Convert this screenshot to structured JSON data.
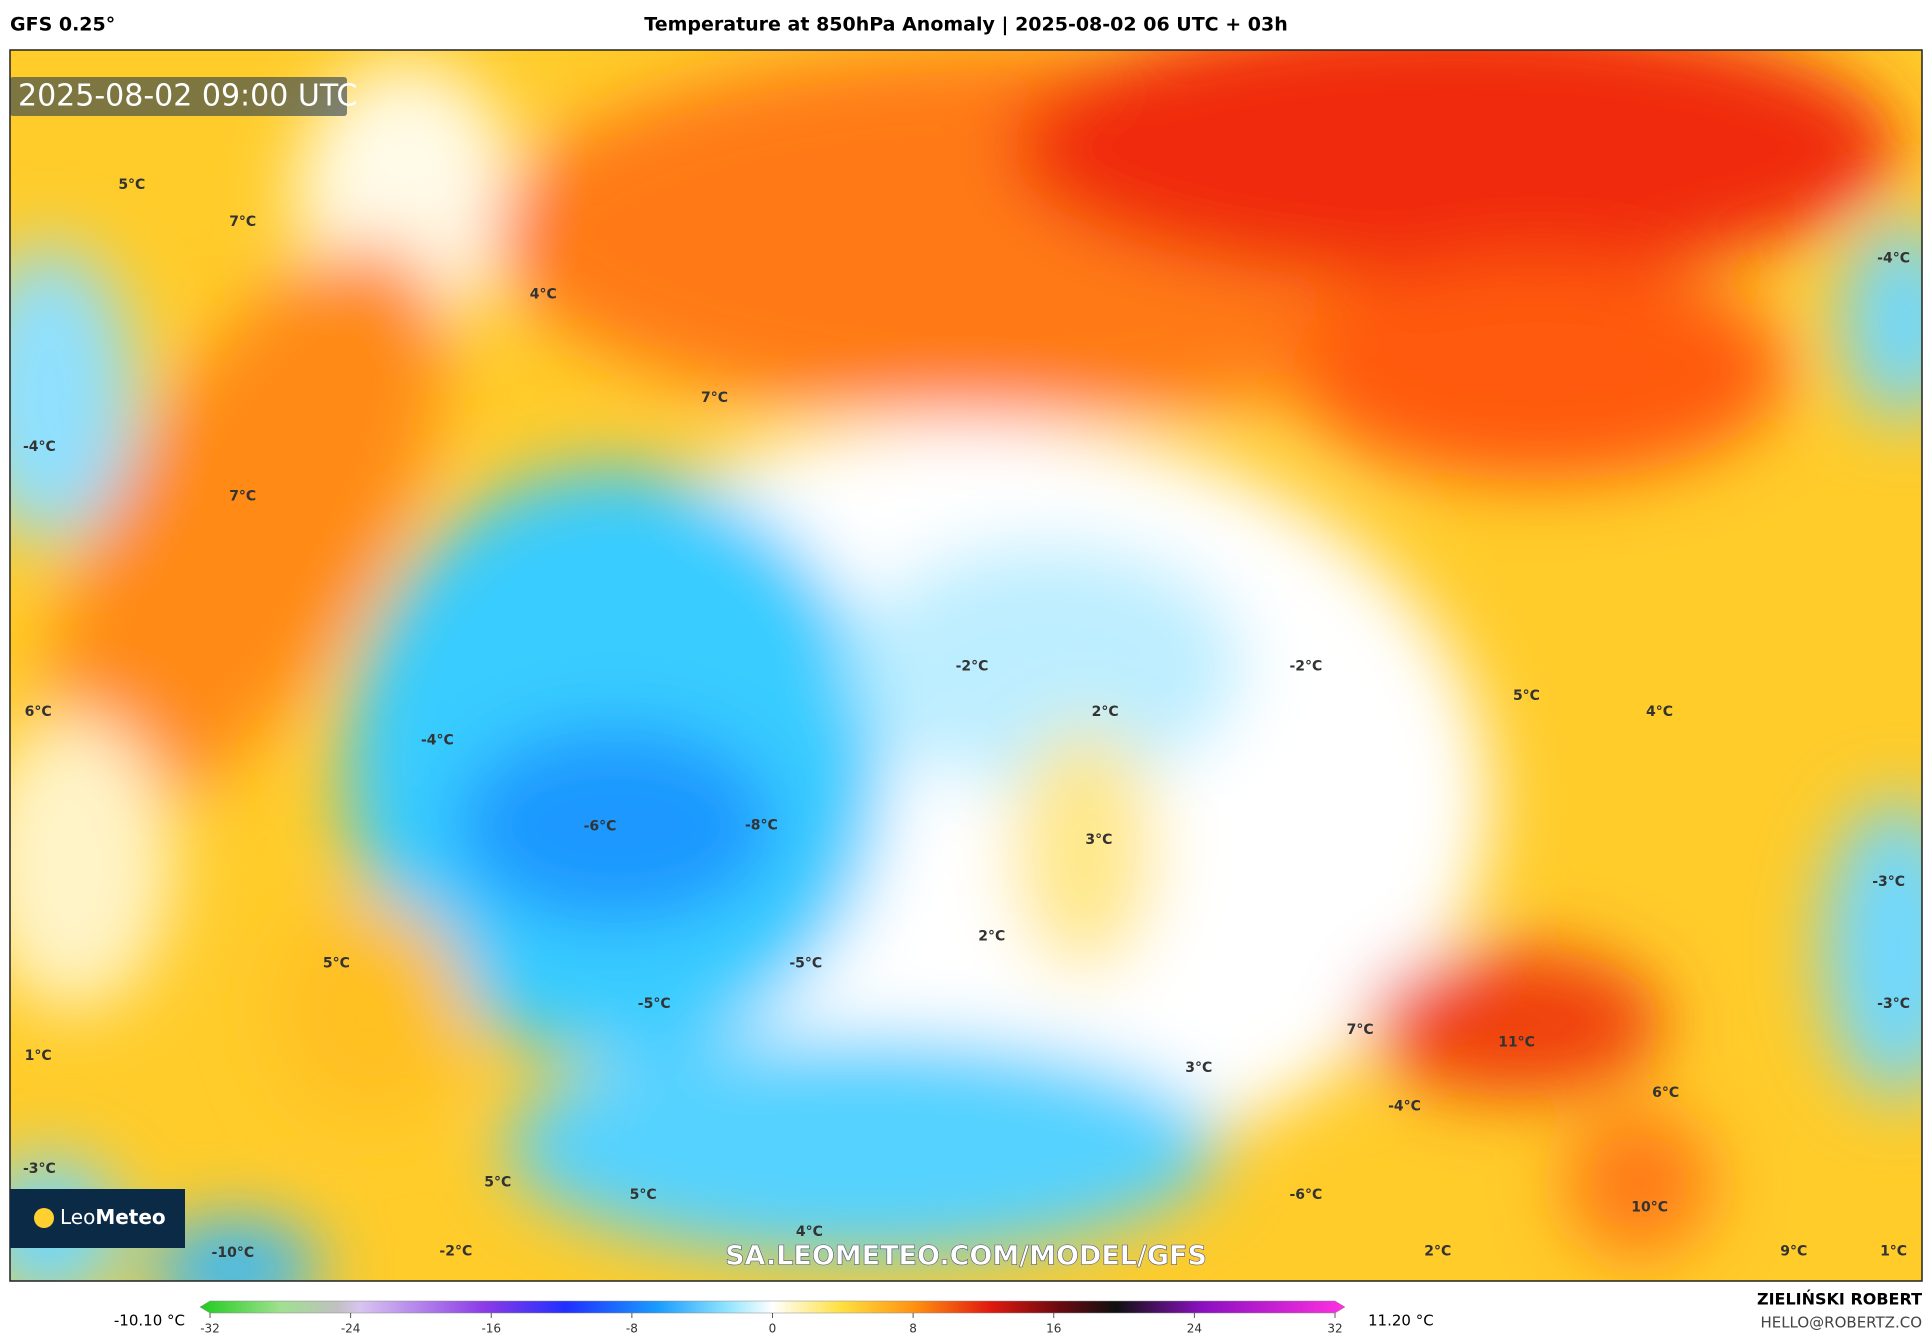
{
  "header": {
    "model": "GFS 0.25°",
    "title": "Temperature at 850hPa Anomaly | 2025-08-02 06 UTC + 03h"
  },
  "map": {
    "timestamp": "2025-08-02 09:00 UTC",
    "contour_labels": [
      "5°C",
      "7°C",
      "4°C",
      "7°C",
      "-4°C",
      "7°C",
      "6°C",
      "-4°C",
      "-6°C",
      "-8°C",
      "-2°C",
      "2°C",
      "-2°C",
      "5°C",
      "4°C",
      "-4°C",
      "3°C",
      "-3°C",
      "2°C",
      "5°C",
      "-5°C",
      "-5°C",
      "-3°C",
      "1°C",
      "7°C",
      "11°C",
      "3°C",
      "6°C",
      "-4°C",
      "-3°C",
      "5°C",
      "5°C",
      "-6°C",
      "10°C",
      "4°C",
      "-10°C",
      "-2°C",
      "2°C",
      "9°C",
      "1°C"
    ],
    "watermark": "SA.LEOMETEO.COM/MODEL/GFS",
    "logo": [
      "Leo",
      "Meteo"
    ]
  },
  "colorbar": {
    "min_label": "-10.10 °C",
    "max_label": "11.20 °C",
    "range": [
      -32,
      32
    ],
    "ticks": [
      -32,
      -24,
      -16,
      -8,
      0,
      8,
      16,
      24,
      32
    ]
  },
  "credits": {
    "author": "ZIELIŃSKI ROBERT",
    "email": "HELLO@ROBERTZ.CO"
  }
}
